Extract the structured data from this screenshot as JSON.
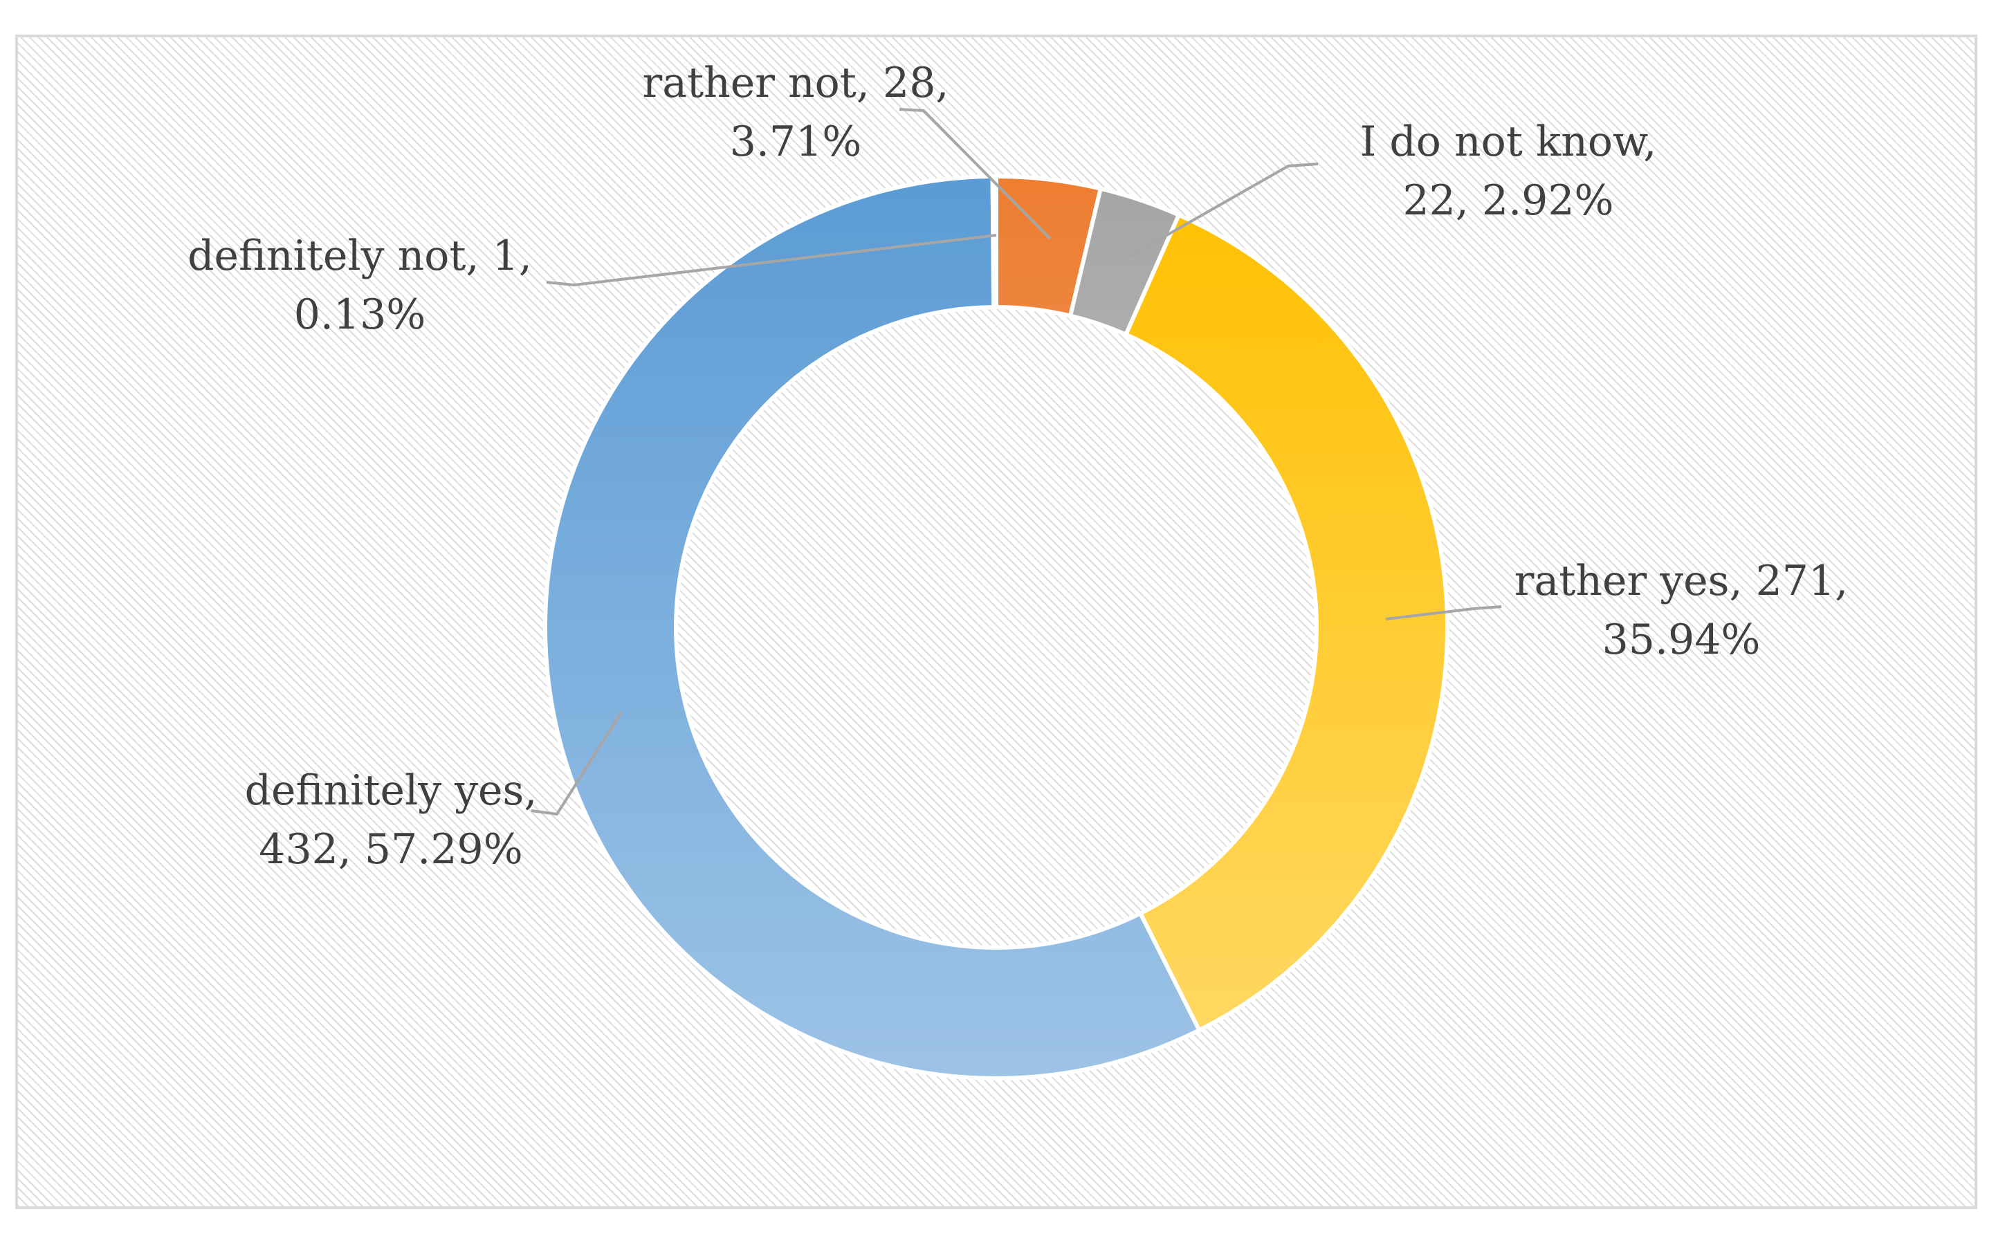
{
  "chart_data": {
    "type": "pie",
    "variant": "doughnut",
    "title": "",
    "legend": "none",
    "slices": [
      {
        "label": "rather not",
        "value": 28,
        "percent": "3.71%",
        "color": "#ED7D31",
        "color_light": "#F4B183",
        "line1": "rather not, 28,",
        "line2": "3.71%"
      },
      {
        "label": "I do not know",
        "value": 22,
        "percent": "2.92%",
        "color": "#A5A5A5",
        "color_light": "#D0D0D0",
        "line1": "I do not know,",
        "line2": "22, 2.92%"
      },
      {
        "label": "rather yes",
        "value": 271,
        "percent": "35.94%",
        "color": "#FFC000",
        "color_light": "#FFD966",
        "line1": "rather yes, 271,",
        "line2": "35.94%"
      },
      {
        "label": "definitely yes",
        "value": 432,
        "percent": "57.29%",
        "color": "#5B9BD5",
        "color_light": "#9DC3E6",
        "line1": "definitely yes,",
        "line2": "432, 57.29%"
      },
      {
        "label": "definitely not",
        "value": 1,
        "percent": "0.13%",
        "color": "#4472C4",
        "color_light": "#8FAADC",
        "line1": "definitely not, 1,",
        "line2": "0.13%"
      }
    ],
    "leader_line_color": "#A6A6A6"
  }
}
